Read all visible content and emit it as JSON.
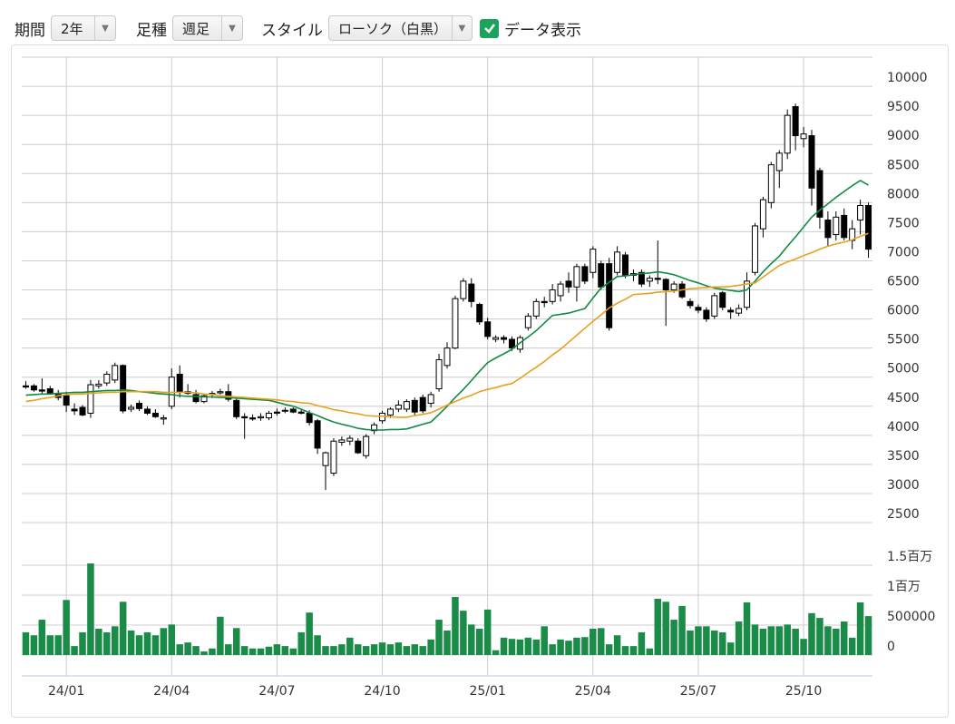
{
  "toolbar": {
    "period_label": "期間",
    "period": "2年",
    "bar_label": "足種",
    "bar": "週足",
    "style_label": "スタイル",
    "style": "ローソク（白黒）",
    "show_data": "データ表示"
  },
  "chart_data": {
    "type": "candlestick",
    "categories": [
      null,
      null,
      null,
      null,
      null,
      "24/01",
      null,
      null,
      null,
      null,
      null,
      null,
      null,
      null,
      null,
      null,
      null,
      null,
      "24/04",
      null,
      null,
      null,
      null,
      null,
      null,
      null,
      null,
      null,
      null,
      null,
      null,
      "24/07",
      null,
      null,
      null,
      null,
      null,
      null,
      null,
      null,
      null,
      null,
      null,
      null,
      "24/10",
      null,
      null,
      null,
      null,
      null,
      null,
      null,
      null,
      null,
      null,
      null,
      null,
      "25/01",
      null,
      null,
      null,
      null,
      null,
      null,
      null,
      null,
      null,
      null,
      null,
      null,
      "25/04",
      null,
      null,
      null,
      null,
      null,
      null,
      null,
      null,
      null,
      null,
      null,
      null,
      "25/07",
      null,
      null,
      null,
      null,
      null,
      null,
      null,
      null,
      null,
      null,
      null,
      null,
      "25/10",
      null,
      null,
      null,
      null,
      null,
      null,
      null,
      null
    ],
    "open": [
      4850,
      4850,
      4780,
      4800,
      4720,
      4680,
      4450,
      4480,
      4380,
      4850,
      4900,
      4950,
      5200,
      4450,
      4550,
      4450,
      4380,
      4280,
      4500,
      5050,
      4750,
      4700,
      4580,
      4700,
      4730,
      4750,
      4600,
      4320,
      4300,
      4300,
      4300,
      4400,
      4420,
      4450,
      4400,
      4380,
      4250,
      3480,
      3350,
      3880,
      3900,
      3900,
      3650,
      4080,
      4250,
      4350,
      4450,
      4450,
      4600,
      4650,
      4550,
      4800,
      5200,
      5500,
      6350,
      6600,
      6250,
      5950,
      5650,
      5680,
      5650,
      5480,
      5850,
      6050,
      6300,
      6300,
      6400,
      6650,
      6550,
      6900,
      6800,
      6950,
      6950,
      6800,
      7100,
      6750,
      6800,
      6650,
      6700,
      6680,
      6500,
      6600,
      6300,
      6200,
      6150,
      6050,
      6450,
      6150,
      6100,
      6200,
      6800,
      7550,
      8000,
      8550,
      8850,
      9650,
      9100,
      9150,
      8550,
      7700,
      7450,
      7780,
      7350,
      7700,
      7950
    ],
    "high": [
      4930,
      4880,
      4980,
      4850,
      4780,
      4750,
      4550,
      4520,
      4950,
      4950,
      5100,
      5250,
      5220,
      4530,
      4600,
      4500,
      4450,
      4350,
      5150,
      5200,
      4880,
      4780,
      4720,
      4760,
      4800,
      4880,
      4650,
      4380,
      4360,
      4380,
      4420,
      4460,
      4480,
      4480,
      4450,
      4430,
      4280,
      3720,
      3950,
      3980,
      4000,
      3950,
      4020,
      4220,
      4420,
      4480,
      4600,
      4620,
      4650,
      4700,
      4750,
      5400,
      5600,
      6400,
      6700,
      6700,
      6280,
      6020,
      5720,
      5720,
      5700,
      5720,
      6100,
      6350,
      6380,
      6600,
      6650,
      6800,
      6950,
      6950,
      7250,
      7000,
      7050,
      7250,
      7150,
      6850,
      6850,
      6750,
      7350,
      6700,
      6650,
      6650,
      6350,
      6250,
      6200,
      6450,
      6480,
      6200,
      6250,
      6800,
      7650,
      8100,
      8700,
      8900,
      9600,
      9700,
      9300,
      9250,
      8600,
      7850,
      7850,
      7900,
      7700,
      8050,
      8000
    ],
    "low": [
      4800,
      4750,
      4720,
      4700,
      4600,
      4400,
      4350,
      4330,
      4300,
      4800,
      4850,
      4900,
      4380,
      4400,
      4420,
      4350,
      4300,
      4180,
      4450,
      4650,
      4700,
      4550,
      4550,
      4640,
      4700,
      4580,
      4280,
      3940,
      4250,
      4250,
      4260,
      4340,
      4380,
      4380,
      4360,
      4170,
      3680,
      3060,
      3300,
      3820,
      3830,
      3680,
      3600,
      4020,
      4200,
      4300,
      4400,
      4400,
      4350,
      4380,
      4480,
      4750,
      5150,
      5480,
      6300,
      6200,
      5900,
      5650,
      5600,
      5580,
      5450,
      5420,
      5800,
      6000,
      6200,
      6250,
      6300,
      6450,
      6300,
      6600,
      6700,
      6500,
      5800,
      6750,
      6700,
      6650,
      6550,
      6550,
      6600,
      5880,
      6450,
      6350,
      6180,
      6100,
      5950,
      6000,
      6150,
      6000,
      6050,
      6150,
      6750,
      7400,
      7900,
      8250,
      8750,
      8900,
      8950,
      7950,
      7550,
      7250,
      7350,
      7350,
      7200,
      7450,
      7050
    ],
    "close": [
      4830,
      4780,
      4760,
      4720,
      4650,
      4520,
      4420,
      4350,
      4870,
      4880,
      5050,
      5200,
      4420,
      4480,
      4460,
      4380,
      4320,
      4300,
      5000,
      4750,
      4720,
      4580,
      4680,
      4720,
      4750,
      4620,
      4320,
      4300,
      4280,
      4320,
      4380,
      4380,
      4430,
      4400,
      4380,
      4220,
      3780,
      3700,
      3900,
      3920,
      3950,
      3700,
      3980,
      4180,
      4380,
      4450,
      4520,
      4580,
      4400,
      4420,
      4700,
      5300,
      5500,
      6350,
      6650,
      6300,
      5950,
      5700,
      5680,
      5650,
      5500,
      5680,
      6050,
      6300,
      6280,
      6500,
      6600,
      6550,
      6900,
      6650,
      7200,
      6550,
      5850,
      7150,
      6750,
      6780,
      6600,
      6700,
      6680,
      6500,
      6600,
      6380,
      6230,
      6150,
      6000,
      6400,
      6200,
      6120,
      6180,
      6650,
      7600,
      8050,
      8650,
      8850,
      9500,
      9150,
      9180,
      8250,
      7750,
      7400,
      7750,
      7400,
      7550,
      7950,
      7200
    ],
    "up_color": "#ffffff",
    "down_color": "#000000",
    "series": [
      {
        "color": "#138a43",
        "values": [
          4690,
          4700,
          4710,
          4710,
          4720,
          4730,
          4740,
          4740,
          4750,
          4760,
          4770,
          4770,
          4780,
          4770,
          4750,
          4740,
          4720,
          4710,
          4700,
          4680,
          4670,
          4670,
          4660,
          4660,
          4650,
          4650,
          4640,
          4630,
          4620,
          4610,
          4600,
          4570,
          4530,
          4500,
          4450,
          4390,
          4340,
          4280,
          4230,
          4190,
          4160,
          4120,
          4100,
          4090,
          4090,
          4100,
          4100,
          4110,
          4150,
          4190,
          4230,
          4360,
          4500,
          4650,
          4790,
          4940,
          5100,
          5250,
          5330,
          5400,
          5480,
          5590,
          5690,
          5800,
          5930,
          6060,
          6080,
          6100,
          6140,
          6180,
          6360,
          6530,
          6630,
          6730,
          6740,
          6760,
          6780,
          6790,
          6810,
          6790,
          6760,
          6710,
          6660,
          6620,
          6570,
          6530,
          6510,
          6490,
          6470,
          6500,
          6650,
          6810,
          6950,
          7080,
          7250,
          7410,
          7580,
          7750,
          7870,
          7980,
          8090,
          8190,
          8290,
          8380,
          8300
        ]
      },
      {
        "color": "#e8a020",
        "values": [
          4580,
          4600,
          4630,
          4650,
          4680,
          4700,
          4710,
          4710,
          4720,
          4730,
          4740,
          4740,
          4750,
          4750,
          4750,
          4750,
          4750,
          4740,
          4740,
          4740,
          4740,
          4730,
          4710,
          4700,
          4680,
          4670,
          4660,
          4650,
          4640,
          4630,
          4620,
          4610,
          4590,
          4580,
          4560,
          4550,
          4510,
          4480,
          4440,
          4420,
          4390,
          4370,
          4340,
          4330,
          4330,
          4320,
          4310,
          4310,
          4340,
          4360,
          4390,
          4450,
          4520,
          4580,
          4640,
          4690,
          4750,
          4790,
          4820,
          4860,
          4890,
          4980,
          5080,
          5170,
          5270,
          5380,
          5480,
          5600,
          5720,
          5840,
          5960,
          6070,
          6190,
          6270,
          6340,
          6420,
          6430,
          6440,
          6460,
          6470,
          6480,
          6500,
          6520,
          6530,
          6540,
          6550,
          6550,
          6560,
          6580,
          6600,
          6620,
          6720,
          6820,
          6920,
          6980,
          7030,
          7090,
          7140,
          7200,
          7250,
          7290,
          7320,
          7360,
          7420,
          7470
        ]
      }
    ],
    "volume": [
      380000,
      330000,
      590000,
      330000,
      330000,
      920000,
      150000,
      380000,
      1530000,
      440000,
      380000,
      480000,
      890000,
      410000,
      330000,
      380000,
      330000,
      450000,
      510000,
      180000,
      210000,
      150000,
      60000,
      110000,
      640000,
      180000,
      450000,
      150000,
      110000,
      110000,
      140000,
      180000,
      150000,
      110000,
      380000,
      710000,
      330000,
      150000,
      150000,
      180000,
      290000,
      180000,
      150000,
      180000,
      210000,
      180000,
      210000,
      150000,
      180000,
      150000,
      260000,
      590000,
      410000,
      970000,
      740000,
      510000,
      440000,
      760000,
      80000,
      290000,
      270000,
      260000,
      290000,
      260000,
      480000,
      180000,
      260000,
      240000,
      290000,
      300000,
      440000,
      450000,
      180000,
      330000,
      150000,
      150000,
      380000,
      110000,
      940000,
      890000,
      590000,
      820000,
      410000,
      480000,
      480000,
      410000,
      380000,
      210000,
      560000,
      880000,
      510000,
      440000,
      480000,
      480000,
      510000,
      440000,
      270000,
      700000,
      620000,
      480000,
      440000,
      560000,
      290000,
      880000,
      650000
    ],
    "volume_color": "#1a8c48",
    "ylim": [
      2500,
      10500
    ],
    "yticks": [
      2500,
      3000,
      3500,
      4000,
      4500,
      5000,
      5500,
      6000,
      6500,
      7000,
      7500,
      8000,
      8500,
      9000,
      9500,
      10000
    ],
    "y2lim": [
      0,
      2000000
    ],
    "y2ticks": [
      0,
      500000,
      {
        "value": 1000000,
        "label": "1百万"
      },
      {
        "value": 1500000,
        "label": "1.5百万"
      }
    ],
    "grid": true
  }
}
